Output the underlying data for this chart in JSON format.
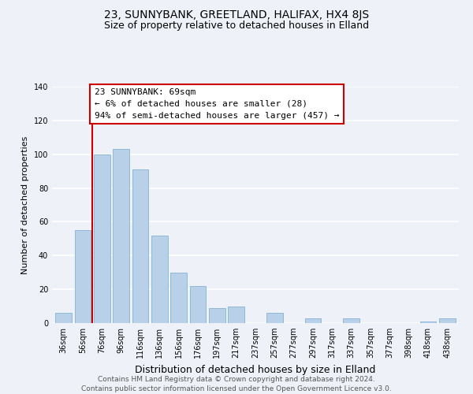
{
  "title": "23, SUNNYBANK, GREETLAND, HALIFAX, HX4 8JS",
  "subtitle": "Size of property relative to detached houses in Elland",
  "xlabel": "Distribution of detached houses by size in Elland",
  "ylabel": "Number of detached properties",
  "footer1": "Contains HM Land Registry data © Crown copyright and database right 2024.",
  "footer2": "Contains public sector information licensed under the Open Government Licence v3.0.",
  "bar_labels": [
    "36sqm",
    "56sqm",
    "76sqm",
    "96sqm",
    "116sqm",
    "136sqm",
    "156sqm",
    "176sqm",
    "197sqm",
    "217sqm",
    "237sqm",
    "257sqm",
    "277sqm",
    "297sqm",
    "317sqm",
    "337sqm",
    "357sqm",
    "377sqm",
    "398sqm",
    "418sqm",
    "438sqm"
  ],
  "bar_values": [
    6,
    55,
    100,
    103,
    91,
    52,
    30,
    22,
    9,
    10,
    0,
    6,
    0,
    3,
    0,
    3,
    0,
    0,
    0,
    1,
    3
  ],
  "bar_color": "#b8d0e8",
  "bar_edge_color": "#8fb8d8",
  "marker_label": "23 SUNNYBANK: 69sqm",
  "annotation_line1": "← 6% of detached houses are smaller (28)",
  "annotation_line2": "94% of semi-detached houses are larger (457) →",
  "vline_color": "#cc0000",
  "vline_x_index": 2,
  "annotation_box_facecolor": "#ffffff",
  "annotation_box_edgecolor": "#cc0000",
  "ylim": [
    0,
    140
  ],
  "yticks": [
    0,
    20,
    40,
    60,
    80,
    100,
    120,
    140
  ],
  "bg_color": "#eef2f8",
  "grid_color": "#ffffff",
  "title_fontsize": 10,
  "subtitle_fontsize": 9,
  "xlabel_fontsize": 9,
  "ylabel_fontsize": 8,
  "tick_fontsize": 7,
  "footer_fontsize": 6.5,
  "annotation_fontsize": 8
}
